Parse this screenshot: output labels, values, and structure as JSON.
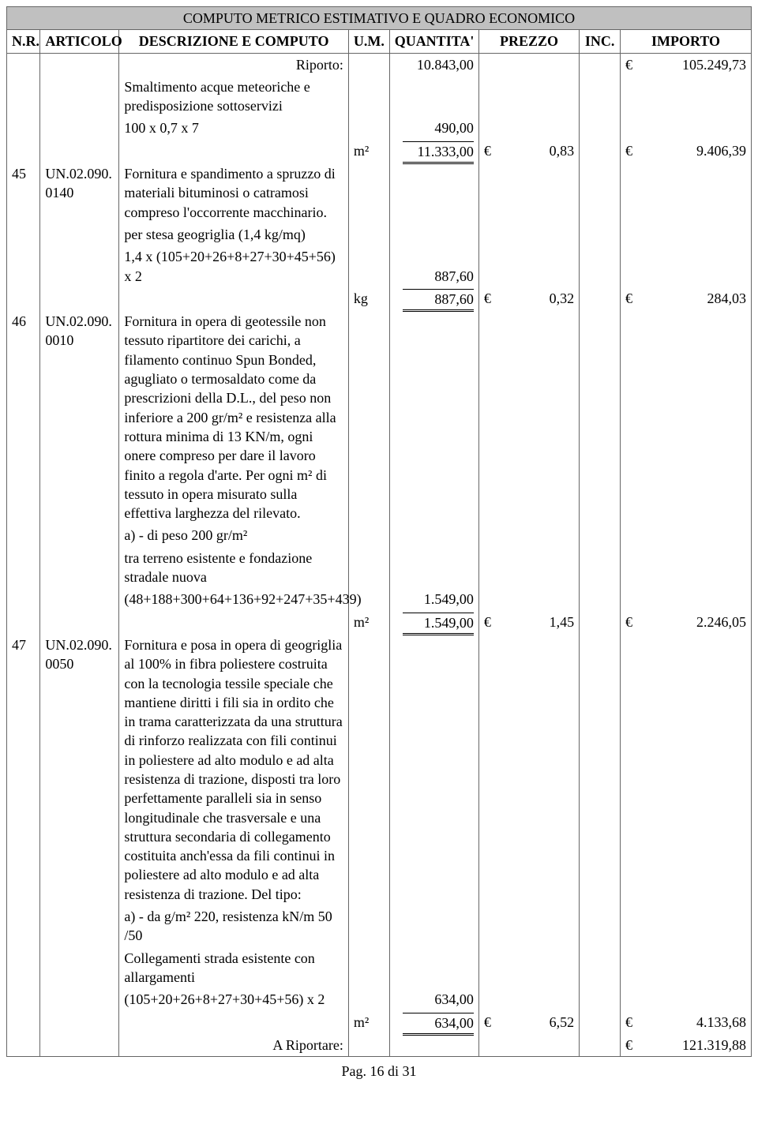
{
  "title": "COMPUTO METRICO ESTIMATIVO E QUADRO ECONOMICO",
  "headers": {
    "nr": "N.R.",
    "articolo": "ARTICOLO",
    "descrizione": "DESCRIZIONE E COMPUTO",
    "um": "U.M.",
    "quantita": "QUANTITA'",
    "prezzo": "PREZZO",
    "inc": "INC.",
    "importo": "IMPORTO"
  },
  "currency": "€",
  "riporto": {
    "label": "Riporto:",
    "qty": "10.843,00",
    "importo": "105.249,73"
  },
  "r0": {
    "desc1": "Smaltimento acque meteoriche e predisposizione sottoservizi",
    "calc": "100 x 0,7 x 7",
    "calc_val": "490,00",
    "um": "m²",
    "qty_sum": "11.333,00",
    "prezzo": "0,83",
    "importo": "9.406,39"
  },
  "r45": {
    "nr": "45",
    "art": "UN.02.090.0140",
    "desc1": "Fornitura e spandimento a spruzzo di materiali bituminosi o catramosi compreso l'occorrente macchinario.",
    "desc2": "per stesa geogriglia (1,4 kg/mq)",
    "calc": "1,4 x (105+20+26+8+27+30+45+56) x 2",
    "calc_val": "887,60",
    "um": "kg",
    "qty_sum": "887,60",
    "prezzo": "0,32",
    "importo": "284,03"
  },
  "r46": {
    "nr": "46",
    "art": "UN.02.090.0010",
    "desc1": "Fornitura in opera di geotessile non tessuto ripartitore dei carichi, a filamento continuo Spun Bonded, agugliato o termosaldato come da prescrizioni della D.L., del peso non inferiore a 200 gr/m² e resistenza alla rottura minima di 13 KN/m, ogni onere compreso per dare il lavoro finito a regola d'arte. Per ogni m² di tessuto in opera misurato sulla effettiva larghezza del rilevato.",
    "desc2": "a) - di peso 200 gr/m²",
    "desc3": "tra terreno esistente e fondazione stradale nuova",
    "calc": "(48+188+300+64+136+92+247+35+439)",
    "calc_val": "1.549,00",
    "um": "m²",
    "qty_sum": "1.549,00",
    "prezzo": "1,45",
    "importo": "2.246,05"
  },
  "r47": {
    "nr": "47",
    "art": "UN.02.090.0050",
    "desc1": "Fornitura e posa in opera di geogriglia al 100% in fibra poliestere costruita con la tecnologia tessile speciale che mantiene diritti i fili sia in ordito che in trama caratterizzata da una struttura di rinforzo realizzata con fili continui in poliestere ad alto modulo e ad alta resistenza di trazione, disposti tra loro perfettamente paralleli sia in senso longitudinale che trasversale e una struttura secondaria di collegamento costituita anch'essa da fili continui in poliestere ad alto modulo e ad alta resistenza di trazione. Del tipo:",
    "desc2": "a) - da g/m² 220, resistenza kN/m  50 /50",
    "desc3": "Collegamenti strada esistente con allargamenti",
    "calc": "(105+20+26+8+27+30+45+56) x 2",
    "calc_val": "634,00",
    "um": "m²",
    "qty_sum": "634,00",
    "prezzo": "6,52",
    "importo": "4.133,68"
  },
  "ariportare": {
    "label": "A Riportare:",
    "importo": "121.319,88"
  },
  "footer": "Pag. 16 di 31"
}
